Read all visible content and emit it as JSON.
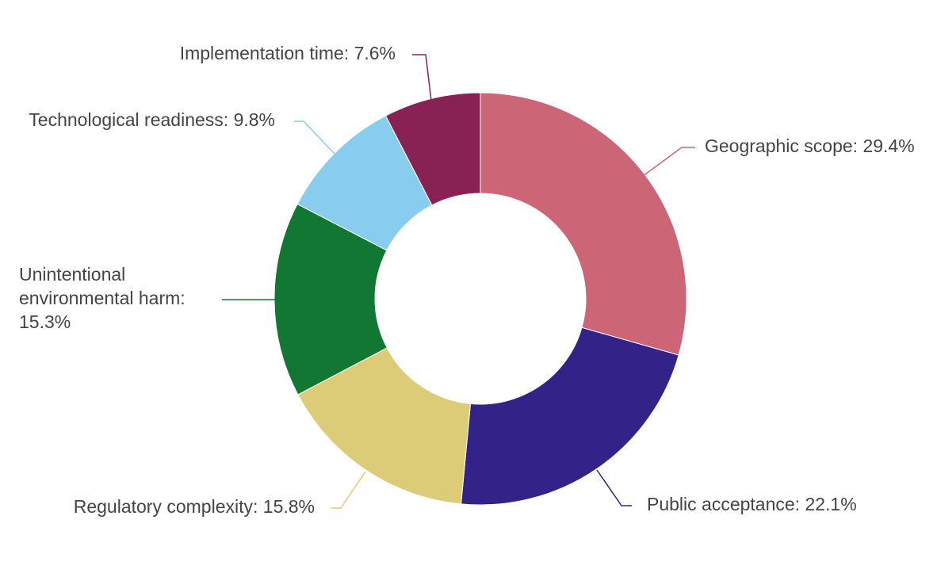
{
  "chart_data": {
    "type": "pie",
    "variant": "donut",
    "slices": [
      {
        "label": "Geographic scope",
        "value": 29.4,
        "display": "Geographic scope: 29.4%",
        "color": "#CC6677"
      },
      {
        "label": "Public acceptance",
        "value": 22.1,
        "display": "Public acceptance: 22.1%",
        "color": "#332288"
      },
      {
        "label": "Regulatory complexity",
        "value": 15.8,
        "display": "Regulatory complexity: 15.8%",
        "color": "#DDCC77"
      },
      {
        "label": "Unintentional environmental harm",
        "value": 15.3,
        "display": "Unintentional environmental harm: 15.3%",
        "color": "#117733"
      },
      {
        "label": "Technological readiness",
        "value": 9.8,
        "display": "Technological readiness: 9.8%",
        "color": "#88CCEE"
      },
      {
        "label": "Implementation time",
        "value": 7.6,
        "display": "Implementation time: 7.6%",
        "color": "#882255"
      }
    ],
    "legend": "none",
    "labels": "outside with leader lines"
  }
}
